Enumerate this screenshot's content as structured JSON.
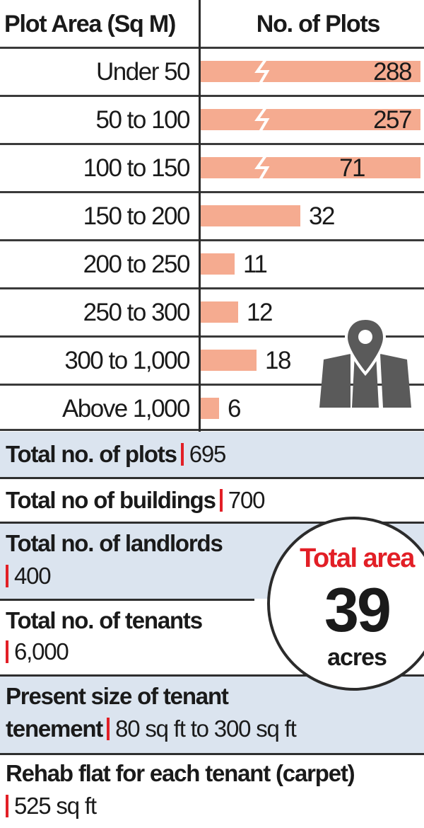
{
  "chart_data": {
    "type": "bar",
    "orientation": "horizontal",
    "column_headers": [
      "Plot Area (Sq M)",
      "No. of Plots"
    ],
    "categories": [
      "Under 50",
      "50 to 100",
      "100 to 150",
      "150 to 200",
      "200 to 250",
      "250 to 300",
      "300 to 1,000",
      "Above 1,000"
    ],
    "values": [
      288,
      257,
      71,
      32,
      11,
      12,
      18,
      6
    ],
    "value_labels": [
      "288",
      "257",
      "71",
      "32",
      "11",
      "12",
      "18",
      "6"
    ],
    "broken_bars": [
      true,
      true,
      true,
      false,
      false,
      false,
      false,
      false
    ],
    "bar_color": "#f5ab90",
    "grid": false,
    "legend": "none"
  },
  "icons": {
    "map": "map-pin-icon"
  },
  "stats": [
    {
      "label": "Total no. of plots",
      "value": "695"
    },
    {
      "label": "Total no of buildings",
      "value": "700"
    },
    {
      "label": "Total no. of landlords",
      "value": "400"
    },
    {
      "label": "Total no. of tenants",
      "value": "6,000"
    },
    {
      "label_line1": "Present size of tenant",
      "label_line2": "tenement",
      "value": "80 sq ft to 300 sq ft"
    },
    {
      "label": "Rehab flat for each tenant (carpet)",
      "value": "525 sq ft"
    }
  ],
  "badge": {
    "title": "Total area",
    "value": "39",
    "unit": "acres"
  },
  "colors": {
    "accent": "#e21f26",
    "shade": "#dbe4ef",
    "bar": "#f5ab90"
  }
}
